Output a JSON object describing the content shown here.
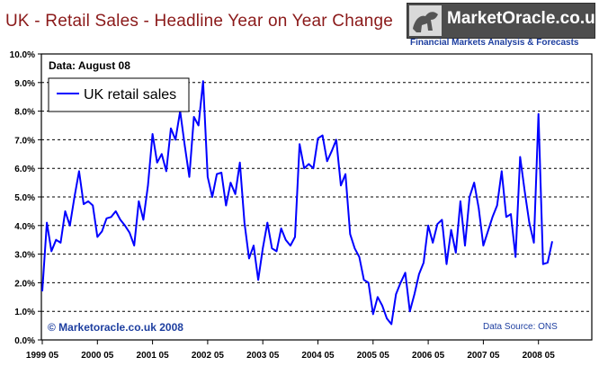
{
  "page": {
    "title": "UK - Retail Sales - Headline Year on Year Change"
  },
  "logo": {
    "name": "MarketOracle.co.uk",
    "tagline": "Financial Markets Analysis & Forecasts",
    "icon": "bull-bear-icon"
  },
  "colors": {
    "title": "#8b1a1a",
    "series": "#0000ff",
    "tagline": "#1e3fa0",
    "frame": "#000000",
    "grid": "#000000"
  },
  "chart_data": {
    "type": "line",
    "title": "UK - Retail Sales - Headline Year on Year Change",
    "xlabel": "",
    "ylabel": "",
    "ylim": [
      0,
      10
    ],
    "y_ticks": [
      "0.0%",
      "1.0%",
      "2.0%",
      "3.0%",
      "4.0%",
      "5.0%",
      "6.0%",
      "7.0%",
      "8.0%",
      "9.0%",
      "10.0%"
    ],
    "x_ticks": [
      "1999 05",
      "2000 05",
      "2001 05",
      "2002 05",
      "2003 05",
      "2004 05",
      "2005 05",
      "2006 05",
      "2007 05",
      "2008 05"
    ],
    "grid": "horizontal-dashed",
    "legend_position": "top-left",
    "annotations": {
      "data_date": "Data: August 08",
      "copyright": "© Marketoracle.co.uk 2008",
      "source": "Data Source: ONS"
    },
    "series": [
      {
        "name": "UK retail sales",
        "x": [
          "1999-05",
          "1999-06",
          "1999-07",
          "1999-08",
          "1999-09",
          "1999-10",
          "1999-11",
          "1999-12",
          "2000-01",
          "2000-02",
          "2000-03",
          "2000-04",
          "2000-05",
          "2000-06",
          "2000-07",
          "2000-08",
          "2000-09",
          "2000-10",
          "2000-11",
          "2000-12",
          "2001-01",
          "2001-02",
          "2001-03",
          "2001-04",
          "2001-05",
          "2001-06",
          "2001-07",
          "2001-08",
          "2001-09",
          "2001-10",
          "2001-11",
          "2001-12",
          "2002-01",
          "2002-02",
          "2002-03",
          "2002-04",
          "2002-05",
          "2002-06",
          "2002-07",
          "2002-08",
          "2002-09",
          "2002-10",
          "2002-11",
          "2002-12",
          "2003-01",
          "2003-02",
          "2003-03",
          "2003-04",
          "2003-05",
          "2003-06",
          "2003-07",
          "2003-08",
          "2003-09",
          "2003-10",
          "2003-11",
          "2003-12",
          "2004-01",
          "2004-02",
          "2004-03",
          "2004-04",
          "2004-05",
          "2004-06",
          "2004-07",
          "2004-08",
          "2004-09",
          "2004-10",
          "2004-11",
          "2004-12",
          "2005-01",
          "2005-02",
          "2005-03",
          "2005-04",
          "2005-05",
          "2005-06",
          "2005-07",
          "2005-08",
          "2005-09",
          "2005-10",
          "2005-11",
          "2005-12",
          "2006-01",
          "2006-02",
          "2006-03",
          "2006-04",
          "2006-05",
          "2006-06",
          "2006-07",
          "2006-08",
          "2006-09",
          "2006-10",
          "2006-11",
          "2006-12",
          "2007-01",
          "2007-02",
          "2007-03",
          "2007-04",
          "2007-05",
          "2007-06",
          "2007-07",
          "2007-08",
          "2007-09",
          "2007-10",
          "2007-11",
          "2007-12",
          "2008-01",
          "2008-02",
          "2008-03",
          "2008-04",
          "2008-05",
          "2008-06",
          "2008-07",
          "2008-08"
        ],
        "values": [
          1.7,
          4.1,
          3.1,
          3.5,
          3.4,
          4.5,
          4.0,
          5.0,
          5.9,
          4.75,
          4.85,
          4.7,
          3.6,
          3.8,
          4.25,
          4.3,
          4.5,
          4.2,
          4.0,
          3.75,
          3.3,
          4.85,
          4.2,
          5.4,
          7.2,
          6.2,
          6.5,
          5.9,
          7.4,
          7.0,
          8.0,
          6.8,
          5.7,
          7.8,
          7.5,
          9.05,
          5.7,
          5.0,
          5.8,
          5.85,
          4.7,
          5.5,
          5.1,
          6.2,
          4.1,
          2.85,
          3.3,
          2.1,
          3.2,
          4.1,
          3.2,
          3.1,
          3.9,
          3.5,
          3.3,
          3.6,
          6.85,
          6.0,
          6.15,
          6.0,
          7.05,
          7.15,
          6.25,
          6.6,
          7.0,
          5.4,
          5.8,
          3.7,
          3.2,
          2.9,
          2.1,
          2.0,
          0.9,
          1.5,
          1.2,
          0.75,
          0.55,
          1.6,
          2.0,
          2.35,
          1.0,
          1.6,
          2.3,
          2.7,
          4.0,
          3.4,
          4.05,
          4.2,
          2.65,
          3.85,
          3.05,
          4.85,
          3.3,
          5.0,
          5.5,
          4.6,
          3.3,
          3.8,
          4.3,
          4.7,
          5.9,
          4.3,
          4.4,
          2.9,
          6.4,
          5.2,
          4.1,
          3.4,
          7.9,
          2.65,
          2.7,
          3.45
        ]
      }
    ]
  }
}
